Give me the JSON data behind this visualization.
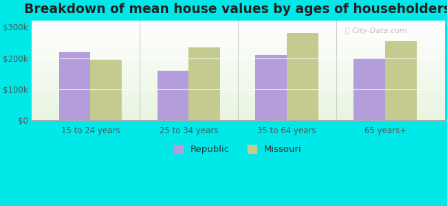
{
  "title": "Breakdown of mean house values by ages of householders",
  "categories": [
    "15 to 24 years",
    "25 to 34 years",
    "35 to 64 years",
    "65 years+"
  ],
  "republic_values": [
    220000,
    160000,
    210000,
    200000
  ],
  "missouri_values": [
    195000,
    235000,
    280000,
    255000
  ],
  "republic_color": "#b39ddb",
  "missouri_color": "#c5ca8e",
  "background_color": "#00e8e8",
  "plot_bg_top": "#e8f5e0",
  "plot_bg_bottom": "#ffffff",
  "ylim": [
    0,
    320000
  ],
  "yticks": [
    0,
    100000,
    200000,
    300000
  ],
  "ytick_labels": [
    "$0",
    "$100k",
    "$200k",
    "$300k"
  ],
  "bar_width": 0.32,
  "legend_republic": "Republic",
  "legend_missouri": "Missouri",
  "title_fontsize": 13.5,
  "tick_fontsize": 8.5,
  "legend_fontsize": 9.5
}
